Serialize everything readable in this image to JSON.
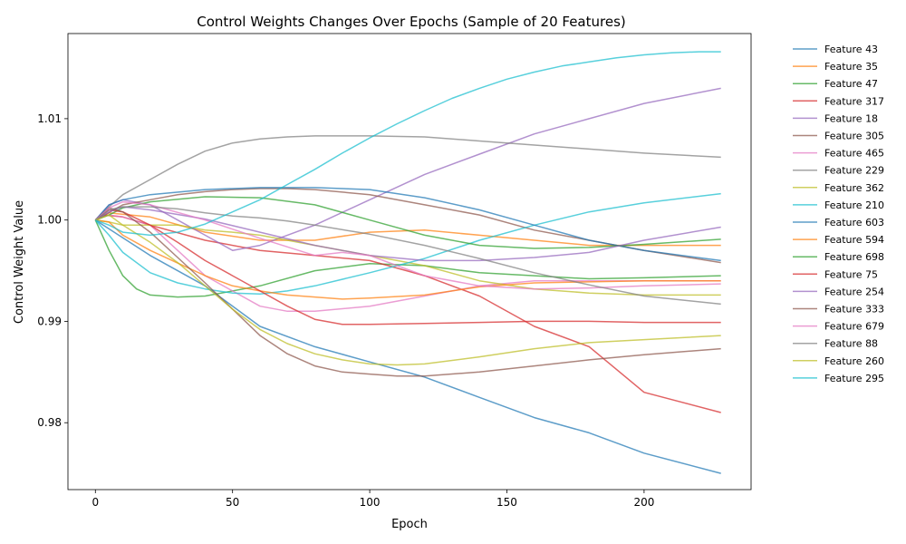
{
  "chart_data": {
    "type": "line",
    "title": "Control Weights Changes Over Epochs (Sample of 20 Features)",
    "xlabel": "Epoch",
    "ylabel": "Control Weight Value",
    "xlim": [
      -10,
      239
    ],
    "ylim": [
      0.9734,
      1.0184
    ],
    "x_ticks": [
      0,
      50,
      100,
      150,
      200
    ],
    "x_tick_labels": [
      "0",
      "50",
      "100",
      "150",
      "200"
    ],
    "y_ticks": [
      0.98,
      0.99,
      1.0,
      1.01
    ],
    "y_tick_labels": [
      "0.98",
      "0.99",
      "1.00",
      "1.01"
    ],
    "grid": false,
    "legend_position": "right",
    "series": [
      {
        "name": "Feature 43",
        "color": "#1f77b4",
        "x": [
          0,
          20,
          40,
          60,
          80,
          100,
          120,
          140,
          160,
          180,
          200,
          228
        ],
        "y": [
          1.0,
          0.9965,
          0.9935,
          0.9895,
          0.9875,
          0.986,
          0.9845,
          0.9825,
          0.9805,
          0.979,
          0.977,
          0.975
        ]
      },
      {
        "name": "Feature 35",
        "color": "#ff7f0e",
        "x": [
          0,
          5,
          20,
          40,
          60,
          80,
          100,
          120,
          140,
          160,
          180,
          200,
          228
        ],
        "y": [
          1.0,
          1.0007,
          1.0003,
          0.9988,
          0.998,
          0.998,
          0.9988,
          0.999,
          0.9985,
          0.998,
          0.9975,
          0.9975,
          0.9975
        ]
      },
      {
        "name": "Feature 47",
        "color": "#2ca02c",
        "x": [
          0,
          5,
          10,
          15,
          20,
          30,
          40,
          60,
          80,
          100,
          120,
          140,
          160,
          180,
          200,
          228
        ],
        "y": [
          1.0,
          0.997,
          0.9945,
          0.9932,
          0.9926,
          0.9924,
          0.9925,
          0.9935,
          0.995,
          0.9957,
          0.9955,
          0.9948,
          0.9945,
          0.9942,
          0.9943,
          0.9945
        ]
      },
      {
        "name": "Feature 317",
        "color": "#d62728",
        "x": [
          0,
          3,
          10,
          20,
          40,
          60,
          80,
          100,
          120,
          140,
          160,
          180,
          200,
          228
        ],
        "y": [
          1.0,
          1.0005,
          1.0003,
          0.9995,
          0.998,
          0.997,
          0.9965,
          0.996,
          0.9945,
          0.9925,
          0.9895,
          0.9875,
          0.983,
          0.981
        ]
      },
      {
        "name": "Feature 18",
        "color": "#9467bd",
        "x": [
          0,
          5,
          10,
          20,
          30,
          40,
          50,
          60,
          70,
          80,
          100,
          120,
          140,
          160,
          180,
          200,
          228
        ],
        "y": [
          1.0,
          1.0015,
          1.002,
          1.0015,
          1.0,
          0.9985,
          0.997,
          0.9975,
          0.9985,
          0.9995,
          1.002,
          1.0045,
          1.0065,
          1.0085,
          1.01,
          1.0115,
          1.013
        ]
      },
      {
        "name": "Feature 305",
        "color": "#8c564b",
        "x": [
          0,
          10,
          20,
          30,
          40,
          50,
          60,
          70,
          80,
          100,
          120,
          140,
          160,
          180,
          200,
          228
        ],
        "y": [
          1.0,
          1.0015,
          1.002,
          1.0025,
          1.0028,
          1.003,
          1.0031,
          1.0031,
          1.003,
          1.0025,
          1.0015,
          1.0005,
          0.999,
          0.998,
          0.997,
          0.9958
        ]
      },
      {
        "name": "Feature 465",
        "color": "#e377c2",
        "x": [
          0,
          5,
          10,
          20,
          30,
          40,
          50,
          60,
          70,
          80,
          100,
          120,
          140,
          160,
          180,
          200,
          228
        ],
        "y": [
          1.0,
          1.0005,
          1.0003,
          0.9995,
          0.997,
          0.9945,
          0.993,
          0.9915,
          0.991,
          0.991,
          0.9915,
          0.9925,
          0.9935,
          0.994,
          0.994,
          0.994,
          0.994
        ]
      },
      {
        "name": "Feature 229",
        "color": "#7f7f7f",
        "x": [
          0,
          5,
          10,
          20,
          30,
          40,
          50,
          60,
          70,
          80,
          100,
          120,
          140,
          160,
          180,
          200,
          228
        ],
        "y": [
          1.0,
          1.0013,
          1.0025,
          1.004,
          1.0055,
          1.0068,
          1.0076,
          1.008,
          1.0082,
          1.0083,
          1.0083,
          1.0082,
          1.0078,
          1.0074,
          1.007,
          1.0066,
          1.0062
        ]
      },
      {
        "name": "Feature 362",
        "color": "#bcbd22",
        "x": [
          0,
          5,
          10,
          20,
          30,
          40,
          50,
          60,
          70,
          80,
          100,
          120,
          140,
          160,
          180,
          200,
          228
        ],
        "y": [
          1.0,
          0.9998,
          0.9995,
          0.9995,
          0.9995,
          0.999,
          0.9988,
          0.9985,
          0.998,
          0.9975,
          0.9965,
          0.9955,
          0.994,
          0.9932,
          0.9928,
          0.9926,
          0.9926
        ]
      },
      {
        "name": "Feature 210",
        "color": "#17becf",
        "x": [
          0,
          5,
          10,
          20,
          30,
          40,
          50,
          60,
          70,
          80,
          100,
          120,
          140,
          160,
          180,
          200,
          228
        ],
        "y": [
          1.0,
          0.9985,
          0.9968,
          0.9948,
          0.9938,
          0.9932,
          0.9928,
          0.9927,
          0.993,
          0.9935,
          0.9948,
          0.9962,
          0.998,
          0.9995,
          1.0008,
          1.0017,
          1.0026
        ]
      },
      {
        "name": "Feature 603",
        "color": "#1f77b4",
        "x": [
          0,
          5,
          10,
          20,
          40,
          60,
          80,
          100,
          120,
          140,
          160,
          180,
          200,
          228
        ],
        "y": [
          1.0,
          1.0015,
          1.002,
          1.0025,
          1.003,
          1.0032,
          1.0032,
          1.003,
          1.0022,
          1.001,
          0.9995,
          0.998,
          0.997,
          0.996
        ]
      },
      {
        "name": "Feature 594",
        "color": "#ff7f0e",
        "x": [
          0,
          5,
          10,
          20,
          40,
          50,
          60,
          70,
          80,
          90,
          100,
          120,
          140,
          160,
          180,
          200,
          228
        ],
        "y": [
          1.0,
          0.9998,
          0.9985,
          0.997,
          0.9945,
          0.9935,
          0.993,
          0.9926,
          0.9924,
          0.9922,
          0.9923,
          0.9926,
          0.9934,
          0.9938,
          0.9939,
          0.994,
          0.994
        ]
      },
      {
        "name": "Feature 698",
        "color": "#2ca02c",
        "x": [
          0,
          5,
          10,
          20,
          40,
          60,
          80,
          100,
          120,
          140,
          160,
          180,
          200,
          228
        ],
        "y": [
          1.0,
          1.0005,
          1.0012,
          1.0018,
          1.0023,
          1.0022,
          1.0015,
          1.0,
          0.9985,
          0.9975,
          0.9972,
          0.9973,
          0.9976,
          0.9981
        ]
      },
      {
        "name": "Feature 75",
        "color": "#d62728",
        "x": [
          0,
          5,
          10,
          20,
          30,
          40,
          50,
          60,
          70,
          80,
          90,
          100,
          120,
          140,
          160,
          180,
          200,
          228
        ],
        "y": [
          1.0,
          1.001,
          1.0008,
          0.9995,
          0.9978,
          0.996,
          0.9945,
          0.993,
          0.9915,
          0.9902,
          0.9897,
          0.9897,
          0.9898,
          0.9899,
          0.99,
          0.99,
          0.9899,
          0.9899
        ]
      },
      {
        "name": "Feature 254",
        "color": "#9467bd",
        "x": [
          0,
          5,
          10,
          20,
          40,
          60,
          80,
          100,
          120,
          140,
          160,
          180,
          200,
          228
        ],
        "y": [
          1.0,
          1.0008,
          1.0013,
          1.001,
          1.0001,
          0.9988,
          0.9975,
          0.9965,
          0.996,
          0.996,
          0.9963,
          0.9968,
          0.998,
          0.9993
        ]
      },
      {
        "name": "Feature 333",
        "color": "#8c564b",
        "x": [
          0,
          5,
          10,
          20,
          30,
          40,
          50,
          60,
          70,
          80,
          90,
          100,
          110,
          120,
          140,
          160,
          180,
          200,
          228
        ],
        "y": [
          1.0,
          1.0012,
          1.0008,
          0.9988,
          0.9963,
          0.9938,
          0.9912,
          0.9886,
          0.9868,
          0.9856,
          0.985,
          0.9848,
          0.9846,
          0.9846,
          0.985,
          0.9856,
          0.9862,
          0.9867,
          0.9873
        ]
      },
      {
        "name": "Feature 679",
        "color": "#e377c2",
        "x": [
          0,
          5,
          10,
          20,
          40,
          60,
          80,
          90,
          100,
          110,
          120,
          140,
          160,
          180,
          200,
          228
        ],
        "y": [
          1.0,
          1.0012,
          1.0018,
          1.0015,
          1.0,
          0.9982,
          0.9965,
          0.9968,
          0.9965,
          0.9955,
          0.9945,
          0.9935,
          0.9932,
          0.9933,
          0.9935,
          0.9937
        ]
      },
      {
        "name": "Feature 88",
        "color": "#7f7f7f",
        "x": [
          0,
          5,
          10,
          20,
          30,
          40,
          50,
          60,
          70,
          80,
          100,
          120,
          140,
          160,
          180,
          200,
          228
        ],
        "y": [
          1.0,
          1.001,
          1.0013,
          1.0013,
          1.0011,
          1.0007,
          1.0004,
          1.0002,
          0.9999,
          0.9995,
          0.9986,
          0.9975,
          0.9962,
          0.9948,
          0.9936,
          0.9925,
          0.9917
        ]
      },
      {
        "name": "Feature 260",
        "color": "#bcbd22",
        "x": [
          0,
          5,
          10,
          20,
          30,
          40,
          50,
          60,
          70,
          80,
          90,
          100,
          110,
          120,
          140,
          160,
          180,
          200,
          228
        ],
        "y": [
          1.0,
          1.0005,
          0.9995,
          0.9978,
          0.9958,
          0.9935,
          0.9912,
          0.9892,
          0.9878,
          0.9868,
          0.9862,
          0.9858,
          0.9857,
          0.9858,
          0.9865,
          0.9873,
          0.9879,
          0.9882,
          0.9886
        ]
      },
      {
        "name": "Feature 295",
        "color": "#17becf",
        "x": [
          0,
          5,
          10,
          20,
          30,
          40,
          50,
          60,
          70,
          80,
          90,
          100,
          110,
          120,
          130,
          140,
          150,
          160,
          170,
          180,
          190,
          200,
          210,
          220,
          228
        ],
        "y": [
          1.0,
          0.9995,
          0.9988,
          0.9985,
          0.9988,
          0.9996,
          1.0008,
          1.002,
          1.0035,
          1.005,
          1.0066,
          1.0081,
          1.0095,
          1.0108,
          1.012,
          1.013,
          1.0139,
          1.0146,
          1.0152,
          1.0156,
          1.016,
          1.0163,
          1.0165,
          1.0166,
          1.0166
        ]
      }
    ]
  }
}
